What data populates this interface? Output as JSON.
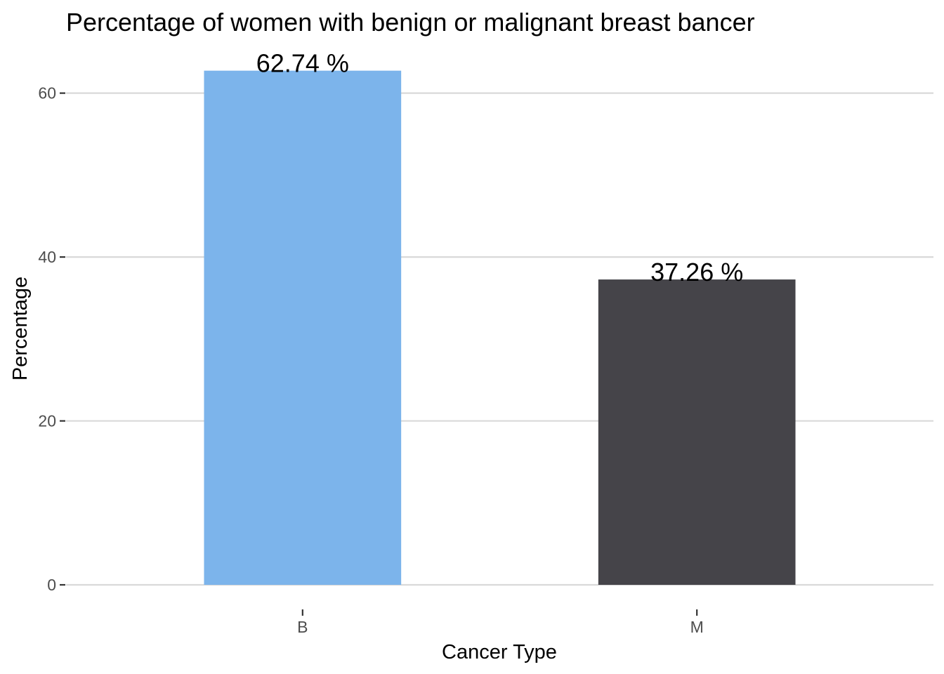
{
  "chart_data": {
    "type": "bar",
    "title": "Percentage of women with benign or malignant breast bancer",
    "xlabel": "Cancer Type",
    "ylabel": "Percentage",
    "categories": [
      "B",
      "M"
    ],
    "values": [
      62.74,
      37.26
    ],
    "data_labels": [
      "62.74 %",
      "37.26 %"
    ],
    "colors": [
      "#7cb4eb",
      "#454449"
    ],
    "ylim": [
      0,
      65.88
    ],
    "yticks": [
      0,
      20,
      40,
      60
    ],
    "ytick_labels": [
      "0",
      "20",
      "40",
      "60"
    ],
    "grid": "horizontal",
    "legend": "none"
  }
}
